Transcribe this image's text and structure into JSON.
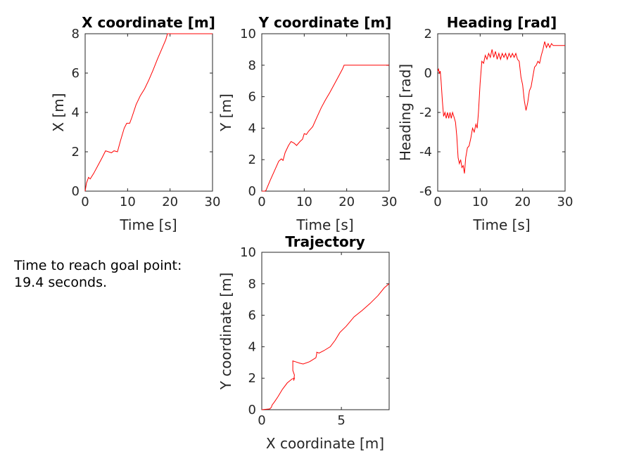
{
  "annotation": {
    "line1": "Time to reach goal point:",
    "line2": "19.4 seconds."
  },
  "colors": {
    "series": "#ff0000",
    "axis": "#262626",
    "title": "#000000"
  },
  "chart_data": [
    {
      "id": "x",
      "type": "line",
      "title": "X coordinate [m]",
      "xlabel": "Time [s]",
      "ylabel": "X [m]",
      "xlim": [
        0,
        30
      ],
      "ylim": [
        0,
        8
      ],
      "xticks": [
        0,
        10,
        20,
        30
      ],
      "yticks": [
        0,
        2,
        4,
        6,
        8
      ],
      "grid": false,
      "series": [
        {
          "points": [
            [
              0,
              0
            ],
            [
              0.3,
              0.4
            ],
            [
              0.8,
              0.7
            ],
            [
              1.2,
              0.62
            ],
            [
              2,
              0.9
            ],
            [
              3,
              1.3
            ],
            [
              4,
              1.7
            ],
            [
              4.8,
              2.05
            ],
            [
              5.5,
              2.0
            ],
            [
              6.2,
              1.95
            ],
            [
              6.8,
              2.05
            ],
            [
              7.6,
              2.0
            ],
            [
              8.3,
              2.55
            ],
            [
              9.2,
              3.2
            ],
            [
              9.8,
              3.45
            ],
            [
              10.5,
              3.45
            ],
            [
              11,
              3.75
            ],
            [
              12,
              4.4
            ],
            [
              13,
              4.85
            ],
            [
              14,
              5.2
            ],
            [
              15,
              5.65
            ],
            [
              16,
              6.15
            ],
            [
              17,
              6.7
            ],
            [
              18,
              7.2
            ],
            [
              19,
              7.7
            ],
            [
              19.4,
              8
            ],
            [
              20,
              8
            ],
            [
              30,
              8
            ]
          ]
        }
      ]
    },
    {
      "id": "y",
      "type": "line",
      "title": "Y coordinate [m]",
      "xlabel": "Time [s]",
      "ylabel": "Y [m]",
      "xlim": [
        0,
        30
      ],
      "ylim": [
        0,
        10
      ],
      "xticks": [
        0,
        10,
        20,
        30
      ],
      "yticks": [
        0,
        2,
        4,
        6,
        8,
        10
      ],
      "grid": false,
      "series": [
        {
          "points": [
            [
              0,
              0
            ],
            [
              0.7,
              0
            ],
            [
              1,
              0.05
            ],
            [
              2,
              0.7
            ],
            [
              3,
              1.3
            ],
            [
              4,
              1.9
            ],
            [
              4.6,
              2.05
            ],
            [
              5,
              1.95
            ],
            [
              5.5,
              2.45
            ],
            [
              6.3,
              2.9
            ],
            [
              6.9,
              3.15
            ],
            [
              7.6,
              3.05
            ],
            [
              8.2,
              2.9
            ],
            [
              9,
              3.15
            ],
            [
              9.6,
              3.3
            ],
            [
              10,
              3.65
            ],
            [
              10.5,
              3.6
            ],
            [
              11,
              3.8
            ],
            [
              12,
              4.1
            ],
            [
              13,
              4.7
            ],
            [
              14,
              5.3
            ],
            [
              15,
              5.8
            ],
            [
              16,
              6.25
            ],
            [
              17,
              6.75
            ],
            [
              18,
              7.25
            ],
            [
              19,
              7.75
            ],
            [
              19.4,
              8
            ],
            [
              20,
              8
            ],
            [
              30,
              8
            ]
          ]
        }
      ]
    },
    {
      "id": "heading",
      "type": "line",
      "title": "Heading [rad]",
      "xlabel": "Time [s]",
      "ylabel": "Heading [rad]",
      "xlim": [
        0,
        30
      ],
      "ylim": [
        -6,
        2
      ],
      "xticks": [
        0,
        10,
        20,
        30
      ],
      "yticks": [
        -6,
        -4,
        -2,
        0,
        2
      ],
      "grid": false,
      "series": [
        {
          "points": [
            [
              0,
              0.1
            ],
            [
              0.2,
              0.2
            ],
            [
              0.4,
              0
            ],
            [
              0.6,
              0.1
            ],
            [
              0.8,
              -0.4
            ],
            [
              1.1,
              -1.4
            ],
            [
              1.4,
              -2.2
            ],
            [
              1.7,
              -2.0
            ],
            [
              2,
              -2.3
            ],
            [
              2.3,
              -2.0
            ],
            [
              2.6,
              -2.3
            ],
            [
              2.9,
              -2.0
            ],
            [
              3.2,
              -2.3
            ],
            [
              3.5,
              -2.0
            ],
            [
              3.8,
              -2.2
            ],
            [
              4.2,
              -2.5
            ],
            [
              4.5,
              -3.2
            ],
            [
              4.8,
              -4.3
            ],
            [
              5.1,
              -4.6
            ],
            [
              5.4,
              -4.4
            ],
            [
              5.7,
              -4.8
            ],
            [
              6,
              -4.7
            ],
            [
              6.3,
              -5.1
            ],
            [
              6.6,
              -4.3
            ],
            [
              7,
              -3.8
            ],
            [
              7.4,
              -3.7
            ],
            [
              7.8,
              -3.3
            ],
            [
              8.2,
              -2.8
            ],
            [
              8.6,
              -3.0
            ],
            [
              9,
              -2.6
            ],
            [
              9.3,
              -2.8
            ],
            [
              9.6,
              -2.0
            ],
            [
              10,
              -0.5
            ],
            [
              10.4,
              0.6
            ],
            [
              10.8,
              0.5
            ],
            [
              11.2,
              0.9
            ],
            [
              11.6,
              0.7
            ],
            [
              12,
              1.0
            ],
            [
              12.4,
              0.8
            ],
            [
              12.8,
              1.2
            ],
            [
              13.2,
              0.8
            ],
            [
              13.6,
              1.1
            ],
            [
              14,
              0.7
            ],
            [
              14.4,
              1.0
            ],
            [
              14.8,
              0.7
            ],
            [
              15.2,
              1.0
            ],
            [
              15.6,
              0.8
            ],
            [
              16,
              1.0
            ],
            [
              16.4,
              0.7
            ],
            [
              16.8,
              1.0
            ],
            [
              17.2,
              0.8
            ],
            [
              17.6,
              1.0
            ],
            [
              18,
              0.8
            ],
            [
              18.4,
              1.0
            ],
            [
              18.8,
              0.7
            ],
            [
              19.2,
              0.6
            ],
            [
              19.6,
              -0.2
            ],
            [
              20,
              -0.6
            ],
            [
              20.4,
              -1.4
            ],
            [
              20.8,
              -1.9
            ],
            [
              21.2,
              -1.5
            ],
            [
              21.6,
              -0.9
            ],
            [
              22,
              -0.7
            ],
            [
              22.4,
              -0.2
            ],
            [
              22.8,
              0.3
            ],
            [
              23.2,
              0.4
            ],
            [
              23.6,
              0.6
            ],
            [
              24,
              0.5
            ],
            [
              24.4,
              0.9
            ],
            [
              24.8,
              1.2
            ],
            [
              25.2,
              1.6
            ],
            [
              25.6,
              1.3
            ],
            [
              26,
              1.5
            ],
            [
              26.4,
              1.3
            ],
            [
              26.8,
              1.5
            ],
            [
              27.2,
              1.4
            ],
            [
              27.6,
              1.4
            ],
            [
              30,
              1.4
            ]
          ]
        }
      ]
    },
    {
      "id": "trajectory",
      "type": "line",
      "title": "Trajectory",
      "xlabel": "X coordinate [m]",
      "ylabel": "Y coordinate [m]",
      "xlim": [
        0,
        8
      ],
      "ylim": [
        0,
        10
      ],
      "xticks": [
        0,
        5
      ],
      "yticks": [
        0,
        2,
        4,
        6,
        8,
        10
      ],
      "grid": false,
      "series": [
        {
          "points": [
            [
              0,
              0
            ],
            [
              0.5,
              0.05
            ],
            [
              0.6,
              0.15
            ],
            [
              0.65,
              0.3
            ],
            [
              0.8,
              0.5
            ],
            [
              1,
              0.8
            ],
            [
              1.3,
              1.3
            ],
            [
              1.6,
              1.7
            ],
            [
              1.9,
              1.95
            ],
            [
              2.05,
              2.0
            ],
            [
              2.0,
              1.85
            ],
            [
              2.05,
              2.2
            ],
            [
              1.95,
              2.5
            ],
            [
              1.95,
              2.8
            ],
            [
              1.95,
              3.1
            ],
            [
              2.1,
              3.05
            ],
            [
              2.4,
              2.95
            ],
            [
              2.6,
              2.9
            ],
            [
              3.0,
              3.05
            ],
            [
              3.4,
              3.3
            ],
            [
              3.45,
              3.55
            ],
            [
              3.45,
              3.65
            ],
            [
              3.6,
              3.6
            ],
            [
              3.9,
              3.75
            ],
            [
              4.3,
              4.0
            ],
            [
              4.6,
              4.4
            ],
            [
              4.9,
              4.9
            ],
            [
              5.3,
              5.3
            ],
            [
              5.8,
              5.9
            ],
            [
              6.3,
              6.3
            ],
            [
              6.8,
              6.75
            ],
            [
              7.3,
              7.25
            ],
            [
              7.7,
              7.75
            ],
            [
              8,
              8
            ]
          ]
        }
      ]
    }
  ]
}
